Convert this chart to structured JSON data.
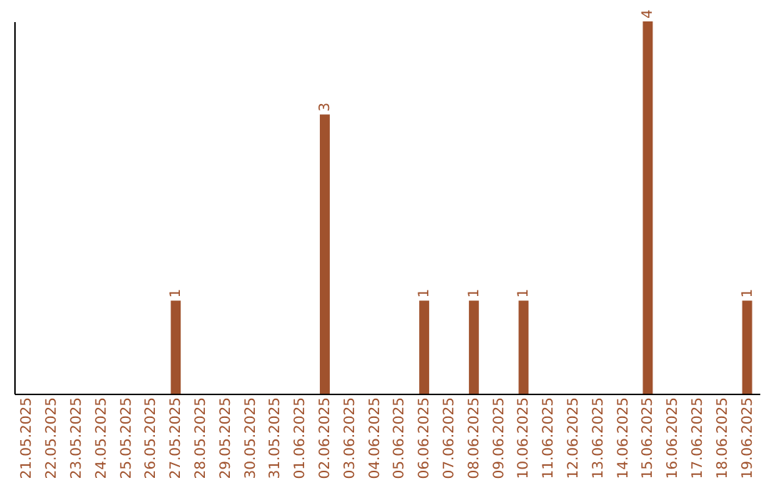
{
  "chart_data": {
    "type": "bar",
    "categories": [
      "21.05.2025",
      "22.05.2025",
      "23.05.2025",
      "24.05.2025",
      "25.05.2025",
      "26.05.2025",
      "27.05.2025",
      "28.05.2025",
      "29.05.2025",
      "30.05.2025",
      "31.05.2025",
      "01.06.2025",
      "02.06.2025",
      "03.06.2025",
      "04.06.2025",
      "05.06.2025",
      "06.06.2025",
      "07.06.2025",
      "08.06.2025",
      "09.06.2025",
      "10.06.2025",
      "11.06.2025",
      "12.06.2025",
      "13.06.2025",
      "14.06.2025",
      "15.06.2025",
      "16.06.2025",
      "17.06.2025",
      "18.06.2025",
      "19.06.2025"
    ],
    "values": [
      0,
      0,
      0,
      0,
      0,
      0,
      1,
      0,
      0,
      0,
      0,
      0,
      3,
      0,
      0,
      0,
      1,
      0,
      1,
      0,
      1,
      0,
      0,
      0,
      0,
      4,
      0,
      0,
      0,
      1
    ],
    "value_labels": [
      null,
      null,
      null,
      null,
      null,
      null,
      "1",
      null,
      null,
      null,
      null,
      null,
      "3",
      null,
      null,
      null,
      "1",
      null,
      "1",
      null,
      "1",
      null,
      null,
      null,
      null,
      "4",
      null,
      null,
      null,
      "1"
    ],
    "color": "#a0522d",
    "tick_labels": "x",
    "grid": false
  }
}
